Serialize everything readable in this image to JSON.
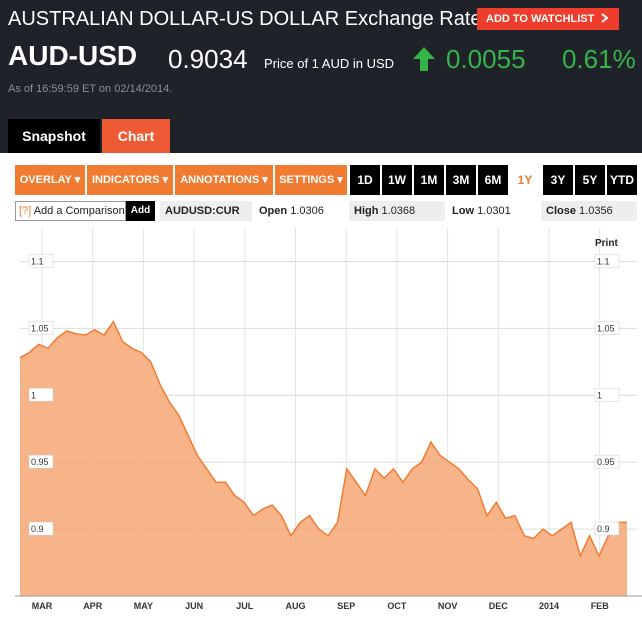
{
  "header": {
    "title": "AUSTRALIAN DOLLAR-US DOLLAR Exchange Rate",
    "watchlist_button": "ADD TO WATCHLIST",
    "watchlist_icon": "chevron-right-icon",
    "symbol": "AUD-USD",
    "price": "0.9034",
    "price_desc": "Price of 1 AUD in USD",
    "change": "0.0055",
    "change_pct": "0.61%",
    "change_icon": "arrow-up-icon",
    "as_of": "As of 16:59:59 ET on 02/14/2014.",
    "colors": {
      "background": "#1f2329",
      "positive": "#35b44a",
      "accent": "#ee3d2c"
    }
  },
  "tabs": [
    {
      "label": "Snapshot",
      "active": false
    },
    {
      "label": "Chart",
      "active": true
    }
  ],
  "toolbar": {
    "menus": [
      "OVERLAY",
      "INDICATORS",
      "ANNOTATIONS",
      "SETTINGS"
    ],
    "ranges": [
      "1D",
      "1W",
      "1M",
      "3M",
      "6M",
      "1Y",
      "3Y",
      "5Y",
      "YTD"
    ],
    "selected_range": "1Y"
  },
  "info": {
    "compare_placeholder": "Add a Comparison",
    "compare_icon": "[?]",
    "add_label": "Add",
    "ticker": "AUDUSD:CUR",
    "open_label": "Open",
    "open_value": "1.0306",
    "high_label": "High",
    "high_value": "1.0368",
    "low_label": "Low",
    "low_value": "1.0301",
    "close_label": "Close",
    "close_value": "1.0356"
  },
  "chart": {
    "print_label": "Print",
    "fill_color": "#f7a774",
    "line_color": "#f07b31"
  },
  "chart_data": {
    "type": "area",
    "x_ticks": [
      "MAR",
      "APR",
      "MAY",
      "JUN",
      "JUL",
      "AUG",
      "SEP",
      "OCT",
      "NOV",
      "DEC",
      "2014",
      "FEB"
    ],
    "y_ticks": [
      "1.1",
      "1.05",
      "1",
      "0.95",
      "0.9"
    ],
    "ylim": [
      0.85,
      1.125
    ],
    "grid": true,
    "series": [
      {
        "values": [
          1.028,
          1.032,
          1.038,
          1.035,
          1.043,
          1.048,
          1.046,
          1.045,
          1.049,
          1.045,
          1.055,
          1.04,
          1.035,
          1.032,
          1.025,
          1.008,
          0.995,
          0.985,
          0.97,
          0.955,
          0.945,
          0.935,
          0.935,
          0.925,
          0.92,
          0.91,
          0.915,
          0.918,
          0.91,
          0.895,
          0.905,
          0.91,
          0.9,
          0.895,
          0.905,
          0.945,
          0.935,
          0.925,
          0.945,
          0.938,
          0.945,
          0.935,
          0.945,
          0.95,
          0.965,
          0.955,
          0.95,
          0.945,
          0.937,
          0.93,
          0.91,
          0.92,
          0.908,
          0.91,
          0.895,
          0.893,
          0.9,
          0.895,
          0.9,
          0.905,
          0.88,
          0.895,
          0.88,
          0.895,
          0.905,
          0.905
        ]
      }
    ]
  }
}
